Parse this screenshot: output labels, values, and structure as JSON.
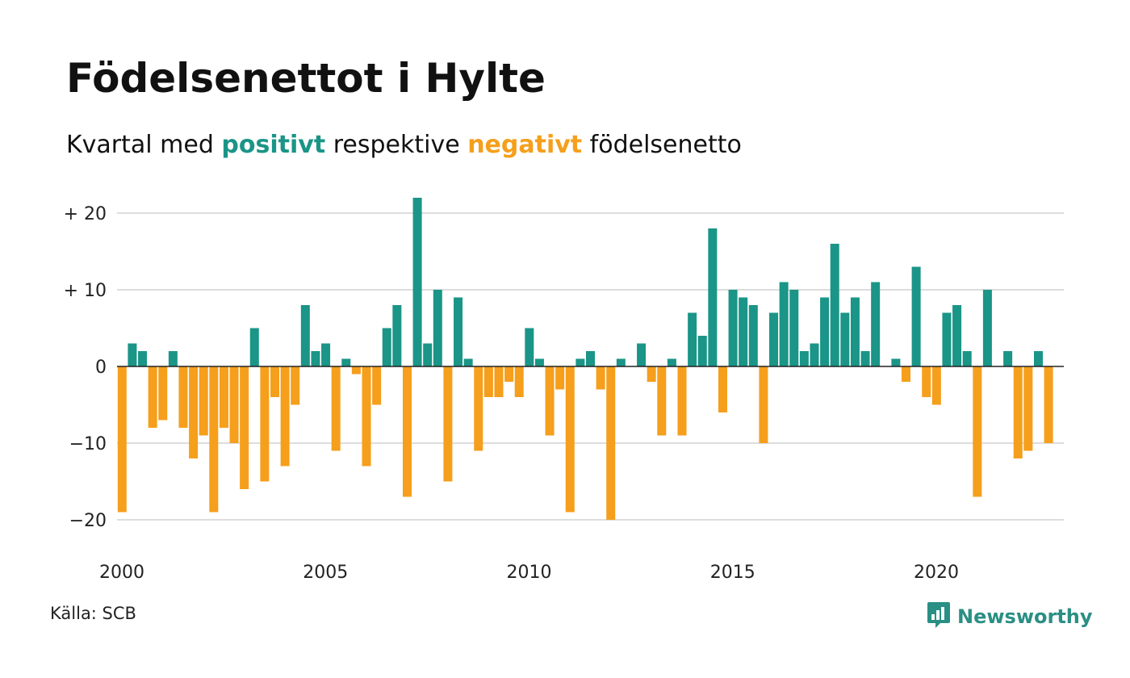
{
  "title": "Födelsenettot i Hylte",
  "subtitle": {
    "part1": "Kvartal med ",
    "positive": "positivt",
    "part2": " respektive ",
    "negative": "negativt",
    "part3": " födelsenetto"
  },
  "source": "Källa: SCB",
  "brand": {
    "name": "Newsworthy",
    "icon": "newsworthy-logo-icon"
  },
  "colors": {
    "positive": "#1a9587",
    "negative": "#f59f1c",
    "grid": "#dddddd",
    "text": "#111111"
  },
  "chart_data": {
    "type": "bar",
    "xlabel": "",
    "ylabel": "",
    "ylim": [
      -23,
      23
    ],
    "xlim": [
      2000,
      2023.25
    ],
    "grid": true,
    "x_ticks": [
      2000,
      2005,
      2010,
      2015,
      2020
    ],
    "x_tick_labels": [
      "2000",
      "2005",
      "2010",
      "2015",
      "2020"
    ],
    "y_ticks": [
      20,
      10,
      0,
      -10,
      -20
    ],
    "y_tick_labels": [
      "+ 20",
      "+ 10",
      "0",
      "−10",
      "−20"
    ],
    "start": "2000 Q1",
    "values": [
      -19,
      3,
      2,
      -8,
      -7,
      2,
      -8,
      -12,
      -9,
      -19,
      -8,
      -10,
      -16,
      5,
      -15,
      -4,
      -13,
      -5,
      8,
      2,
      3,
      -11,
      1,
      -1,
      -13,
      -5,
      5,
      8,
      -17,
      22,
      3,
      10,
      -15,
      9,
      1,
      -11,
      -4,
      -4,
      -2,
      -4,
      5,
      1,
      -9,
      -3,
      -19,
      1,
      2,
      -3,
      -20,
      1,
      0,
      3,
      -2,
      -9,
      1,
      -9,
      7,
      4,
      18,
      -6,
      10,
      9,
      8,
      -10,
      7,
      11,
      10,
      2,
      3,
      9,
      16,
      7,
      9,
      2,
      11,
      0,
      1,
      -2,
      13,
      -4,
      -5,
      7,
      8,
      2,
      -17,
      10,
      0,
      2,
      -12,
      -11,
      2,
      -10
    ]
  }
}
